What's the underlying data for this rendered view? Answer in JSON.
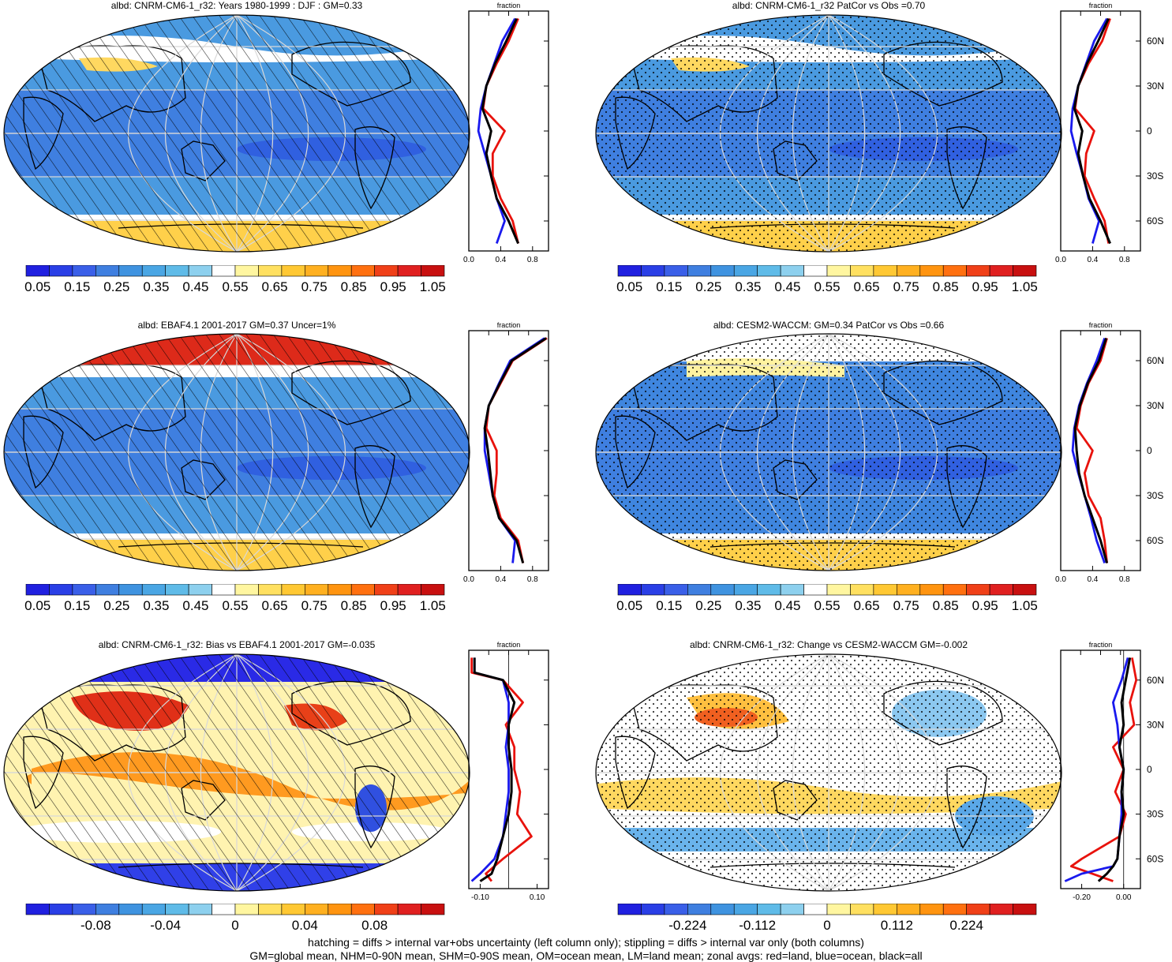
{
  "panels": [
    {
      "id": "model-climatology",
      "title": "albd: CNRM-CM6-1_r32: Years 1980-1999 : DJF : GM=0.33",
      "field": "climatology",
      "hatch": true,
      "stipple": false
    },
    {
      "id": "model-vs-obs",
      "title": "albd: CNRM-CM6-1_r32 PatCor vs Obs =0.70",
      "field": "climatology",
      "hatch": false,
      "stipple": true
    },
    {
      "id": "obs-climatology",
      "title": "albd: EBAF4.1 2001-2017 GM=0.37 Uncer=1%",
      "field": "obs",
      "hatch": true,
      "stipple": false
    },
    {
      "id": "cesm-climatology",
      "title": "albd: CESM2-WACCM: GM=0.34 PatCor vs Obs =0.66",
      "field": "climatology",
      "hatch": false,
      "stipple": true
    },
    {
      "id": "bias-vs-obs",
      "title": "albd: CNRM-CM6-1_r32: Bias vs EBAF4.1 2001-2017 GM=-0.035",
      "field": "bias",
      "hatch": true,
      "stipple": false
    },
    {
      "id": "change-vs-cesm",
      "title": "albd: CNRM-CM6-1_r32: Change vs CESM2-WACCM GM=-0.002",
      "field": "change",
      "hatch": false,
      "stipple": true
    }
  ],
  "zonal_panels": [
    {
      "label": "fraction",
      "xticks": [
        "0.0",
        "0.4",
        "0.8"
      ],
      "xlim": [
        0,
        1
      ],
      "zero_line": false,
      "lat_ticks": [
        "60N",
        "30N",
        "0",
        "30S",
        "60S"
      ]
    },
    {
      "label": "fraction",
      "xticks": [
        "0.0",
        "0.4",
        "0.8"
      ],
      "xlim": [
        0,
        1
      ],
      "zero_line": false,
      "lat_ticks": [
        "60N",
        "30N",
        "0",
        "30S",
        "60S"
      ]
    },
    {
      "label": "fraction",
      "xticks": [
        "0.0",
        "0.4",
        "0.8"
      ],
      "xlim": [
        0,
        1
      ],
      "zero_line": false,
      "lat_ticks": [
        "60N",
        "30N",
        "0",
        "30S",
        "60S"
      ]
    },
    {
      "label": "fraction",
      "xticks": [
        "0.0",
        "0.4",
        "0.8"
      ],
      "xlim": [
        0,
        1
      ],
      "zero_line": false,
      "lat_ticks": [
        "60N",
        "30N",
        "0",
        "30S",
        "60S"
      ]
    },
    {
      "label": "fraction",
      "xticks": [
        "-0.10",
        "0.10"
      ],
      "xlim": [
        -0.14,
        0.14
      ],
      "zero_line": true,
      "lat_ticks": [
        "60N",
        "30N",
        "0",
        "30S",
        "60S"
      ]
    },
    {
      "label": "fraction",
      "xticks": [
        "-0.20",
        "0.00"
      ],
      "xlim": [
        -0.3,
        0.08
      ],
      "zero_line": true,
      "lat_ticks": [
        "60N",
        "30N",
        "0",
        "30S",
        "60S"
      ]
    }
  ],
  "colorbars": [
    {
      "labels": [
        "0.05",
        "0.15",
        "0.25",
        "0.35",
        "0.45",
        "0.55",
        "0.65",
        "0.75",
        "0.85",
        "0.95",
        "1.05"
      ],
      "colors": [
        "#2020e0",
        "#2a3fe6",
        "#3a5fe8",
        "#3f7fe0",
        "#3f93e0",
        "#4aa6e4",
        "#5fbbe8",
        "#8dd0ee",
        "#ffffff",
        "#fff6a0",
        "#ffe060",
        "#ffc833",
        "#ffb020",
        "#ff9410",
        "#ff7010",
        "#f04018",
        "#e02020",
        "#c81010"
      ]
    },
    {
      "labels": [
        "0.05",
        "0.15",
        "0.25",
        "0.35",
        "0.45",
        "0.55",
        "0.65",
        "0.75",
        "0.85",
        "0.95",
        "1.05"
      ],
      "colors": [
        "#2020e0",
        "#2a3fe6",
        "#3a5fe8",
        "#3f7fe0",
        "#3f93e0",
        "#4aa6e4",
        "#5fbbe8",
        "#8dd0ee",
        "#ffffff",
        "#fff6a0",
        "#ffe060",
        "#ffc833",
        "#ffb020",
        "#ff9410",
        "#ff7010",
        "#f04018",
        "#e02020",
        "#c81010"
      ]
    },
    {
      "labels": [
        "0.05",
        "0.15",
        "0.25",
        "0.35",
        "0.45",
        "0.55",
        "0.65",
        "0.75",
        "0.85",
        "0.95",
        "1.05"
      ],
      "colors": [
        "#2020e0",
        "#2a3fe6",
        "#3a5fe8",
        "#3f7fe0",
        "#3f93e0",
        "#4aa6e4",
        "#5fbbe8",
        "#8dd0ee",
        "#ffffff",
        "#fff6a0",
        "#ffe060",
        "#ffc833",
        "#ffb020",
        "#ff9410",
        "#ff7010",
        "#f04018",
        "#e02020",
        "#c81010"
      ]
    },
    {
      "labels": [
        "0.05",
        "0.15",
        "0.25",
        "0.35",
        "0.45",
        "0.55",
        "0.65",
        "0.75",
        "0.85",
        "0.95",
        "1.05"
      ],
      "colors": [
        "#2020e0",
        "#2a3fe6",
        "#3a5fe8",
        "#3f7fe0",
        "#3f93e0",
        "#4aa6e4",
        "#5fbbe8",
        "#8dd0ee",
        "#ffffff",
        "#fff6a0",
        "#ffe060",
        "#ffc833",
        "#ffb020",
        "#ff9410",
        "#ff7010",
        "#f04018",
        "#e02020",
        "#c81010"
      ]
    },
    {
      "labels": [
        "-0.08",
        "-0.04",
        "0",
        "0.04",
        "0.08"
      ],
      "colors": [
        "#2020e0",
        "#2a3fe6",
        "#3a5fe8",
        "#3f7fe0",
        "#3f93e0",
        "#4aa6e4",
        "#5fbbe8",
        "#8dd0ee",
        "#ffffff",
        "#fff6a0",
        "#ffe060",
        "#ffc833",
        "#ffb020",
        "#ff9410",
        "#ff7010",
        "#f04018",
        "#e02020",
        "#c81010"
      ]
    },
    {
      "labels": [
        "-0.224",
        "-0.112",
        "0",
        "0.112",
        "0.224"
      ],
      "colors": [
        "#2020e0",
        "#2a3fe6",
        "#3a5fe8",
        "#3f7fe0",
        "#3f93e0",
        "#4aa6e4",
        "#5fbbe8",
        "#8dd0ee",
        "#ffffff",
        "#fff6a0",
        "#ffe060",
        "#ffc833",
        "#ffb020",
        "#ff9410",
        "#ff7010",
        "#f04018",
        "#e02020",
        "#c81010"
      ]
    }
  ],
  "footnotes": {
    "line1": "hatching = diffs > internal var+obs uncertainty (left column only); stippling = diffs > internal var only (both columns)",
    "line2": "GM=global mean, NHM=0-90N mean, SHM=0-90S mean, OM=ocean mean, LM=land mean; zonal avgs: red=land, blue=ocean, black=all"
  },
  "colors": {
    "land": "#e8120c",
    "ocean": "#1a1aee",
    "all": "#000000"
  },
  "chart_data": [
    {
      "type": "heatmap",
      "title": "albd: CNRM-CM6-1_r32: Years 1980-1999 : DJF : GM=0.33",
      "projection": "Robinson",
      "zonal_avg": {
        "label": "fraction",
        "lat": [
          -75,
          -60,
          -45,
          -30,
          -15,
          0,
          15,
          30,
          45,
          60,
          75
        ],
        "land": [
          0.62,
          0.55,
          0.4,
          0.3,
          0.3,
          0.45,
          0.18,
          0.22,
          0.35,
          0.5,
          0.62
        ],
        "ocean": [
          0.35,
          0.45,
          0.35,
          0.28,
          0.2,
          0.12,
          0.15,
          0.22,
          0.32,
          0.42,
          0.58
        ],
        "all": [
          0.62,
          0.5,
          0.35,
          0.28,
          0.22,
          0.28,
          0.17,
          0.22,
          0.33,
          0.47,
          0.6
        ]
      }
    },
    {
      "type": "heatmap",
      "title": "albd: CNRM-CM6-1_r32 PatCor vs Obs =0.70",
      "projection": "Robinson",
      "zonal_avg": {
        "label": "fraction",
        "lat": [
          -75,
          -60,
          -45,
          -30,
          -15,
          0,
          15,
          30,
          45,
          60,
          75
        ],
        "land": [
          0.6,
          0.55,
          0.42,
          0.3,
          0.32,
          0.42,
          0.18,
          0.22,
          0.35,
          0.52,
          0.62
        ],
        "ocean": [
          0.4,
          0.48,
          0.35,
          0.28,
          0.2,
          0.13,
          0.15,
          0.22,
          0.32,
          0.42,
          0.58
        ],
        "all": [
          0.62,
          0.5,
          0.36,
          0.28,
          0.22,
          0.27,
          0.17,
          0.22,
          0.33,
          0.47,
          0.6
        ]
      }
    },
    {
      "type": "heatmap",
      "title": "albd: EBAF4.1 2001-2017 GM=0.37 Uncer=1%",
      "projection": "Robinson",
      "zonal_avg": {
        "label": "fraction",
        "lat": [
          -75,
          -60,
          -45,
          -30,
          -15,
          0,
          15,
          30,
          45,
          60,
          75
        ],
        "land": [
          0.68,
          0.62,
          0.4,
          0.32,
          0.35,
          0.35,
          0.22,
          0.25,
          0.4,
          0.55,
          0.98
        ],
        "ocean": [
          0.55,
          0.58,
          0.38,
          0.3,
          0.25,
          0.2,
          0.2,
          0.25,
          0.38,
          0.52,
          0.95
        ],
        "all": [
          0.68,
          0.6,
          0.38,
          0.3,
          0.27,
          0.24,
          0.2,
          0.25,
          0.39,
          0.54,
          0.97
        ]
      }
    },
    {
      "type": "heatmap",
      "title": "albd: CESM2-WACCM: GM=0.34 PatCor vs Obs =0.66",
      "projection": "Robinson",
      "zonal_avg": {
        "label": "fraction",
        "lat": [
          -75,
          -60,
          -45,
          -30,
          -15,
          0,
          15,
          30,
          45,
          60,
          75
        ],
        "land": [
          0.58,
          0.55,
          0.5,
          0.35,
          0.3,
          0.4,
          0.2,
          0.25,
          0.35,
          0.5,
          0.58
        ],
        "ocean": [
          0.55,
          0.45,
          0.38,
          0.3,
          0.22,
          0.15,
          0.17,
          0.23,
          0.33,
          0.45,
          0.55
        ],
        "all": [
          0.58,
          0.5,
          0.4,
          0.3,
          0.23,
          0.2,
          0.18,
          0.24,
          0.34,
          0.48,
          0.57
        ]
      }
    },
    {
      "type": "heatmap",
      "title": "albd: CNRM-CM6-1_r32: Bias vs EBAF4.1 2001-2017 GM=-0.035",
      "projection": "Robinson",
      "zonal_avg": {
        "label": "fraction",
        "lat": [
          -75,
          -70,
          -60,
          -45,
          -30,
          -15,
          0,
          15,
          30,
          45,
          60,
          65,
          75
        ],
        "land": [
          -0.06,
          -0.08,
          -0.02,
          0.08,
          0.03,
          0.04,
          0.02,
          0.02,
          -0.01,
          0.05,
          -0.02,
          -0.13,
          -0.13
        ],
        "ocean": [
          -0.13,
          -0.1,
          -0.05,
          -0.02,
          -0.01,
          0.0,
          0.0,
          -0.01,
          0.0,
          0.0,
          -0.02,
          -0.12,
          -0.12
        ],
        "all": [
          -0.1,
          -0.06,
          -0.04,
          -0.02,
          0.0,
          0.01,
          0.01,
          0.0,
          0.0,
          0.02,
          -0.02,
          -0.12,
          -0.12
        ]
      }
    },
    {
      "type": "heatmap",
      "title": "albd: CNRM-CM6-1_r32: Change vs CESM2-WACCM GM=-0.002",
      "projection": "Robinson",
      "zonal_avg": {
        "label": "fraction",
        "lat": [
          -75,
          -70,
          -65,
          -60,
          -45,
          -30,
          -15,
          0,
          15,
          30,
          45,
          60,
          75
        ],
        "land": [
          -0.05,
          -0.15,
          -0.25,
          -0.2,
          -0.02,
          0.01,
          -0.04,
          0.0,
          -0.05,
          0.05,
          0.03,
          0.06,
          0.04
        ],
        "ocean": [
          -0.28,
          -0.2,
          -0.05,
          -0.03,
          -0.02,
          -0.01,
          -0.01,
          0.0,
          -0.02,
          -0.03,
          -0.05,
          -0.01,
          0.02
        ],
        "all": [
          -0.12,
          -0.08,
          -0.05,
          -0.03,
          -0.02,
          0.0,
          -0.01,
          0.0,
          -0.02,
          0.0,
          -0.01,
          0.01,
          0.03
        ]
      }
    }
  ]
}
